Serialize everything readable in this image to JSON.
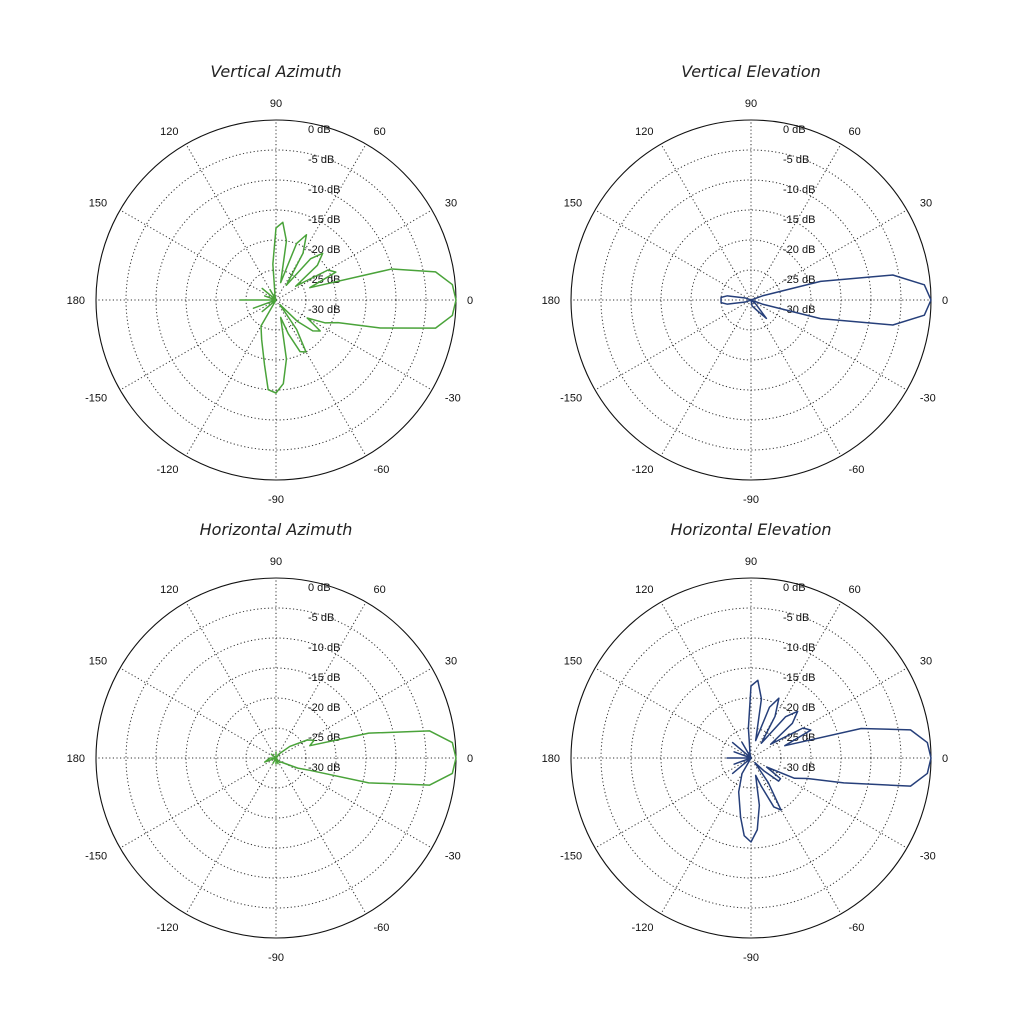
{
  "colors": {
    "green": "#4aa33a",
    "blue": "#263f7a"
  },
  "chart_data": [
    {
      "type": "line",
      "subtype": "polar",
      "title": "Vertical Azimuth",
      "color": "#4aa33a",
      "angle_labels": [
        "0",
        "30",
        "60",
        "90",
        "120",
        "150",
        "180",
        "-150",
        "-120",
        "-90",
        "-60",
        "-30"
      ],
      "radial_labels": [
        "0 dB",
        "-5 dB",
        "-10 dB",
        "-15 dB",
        "-20 dB",
        "-25 dB",
        "-30 dB"
      ],
      "rlim": [
        -30,
        0
      ],
      "series": [
        {
          "theta": [
            -180,
            -170,
            -160,
            -150,
            -140,
            -130,
            -120,
            -110,
            -100,
            -95,
            -90,
            -85,
            -80,
            -75,
            -70,
            -65,
            -60,
            -55,
            -50,
            -45,
            -40,
            -35,
            -30,
            -25,
            -20,
            -15,
            -10,
            -5,
            0,
            5,
            10,
            15,
            20,
            25,
            30,
            35,
            40,
            45,
            50,
            55,
            60,
            65,
            70,
            75,
            80,
            85,
            90,
            95,
            100,
            105,
            110,
            120,
            130,
            140,
            150,
            160,
            170,
            180
          ],
          "r_db": [
            -24,
            -30,
            -26,
            -30,
            -27,
            -30,
            -25,
            -23,
            -19,
            -15,
            -14.5,
            -16,
            -20,
            -27,
            -24,
            -20.5,
            -20,
            -24,
            -29,
            -25,
            -22,
            -21,
            -24,
            -21,
            -19,
            -12,
            -3,
            -0.5,
            0,
            -0.5,
            -3,
            -10,
            -24,
            -19,
            -20,
            -26,
            -21,
            -19,
            -21,
            -27,
            -21,
            -18,
            -20,
            -27,
            -20,
            -17,
            -18,
            -24,
            -29,
            -29,
            -30,
            -28,
            -30,
            -27,
            -30,
            -28,
            -30,
            -24
          ]
        }
      ]
    },
    {
      "type": "line",
      "subtype": "polar",
      "title": "Vertical Elevation",
      "color": "#263f7a",
      "angle_labels": [
        "0",
        "30",
        "60",
        "90",
        "120",
        "150",
        "180",
        "-150",
        "-120",
        "-90",
        "-60",
        "-30"
      ],
      "radial_labels": [
        "0 dB",
        "-5 dB",
        "-10 dB",
        "-15 dB",
        "-20 dB",
        "-25 dB",
        "-30 dB"
      ],
      "rlim": [
        -30,
        0
      ],
      "series": [
        {
          "theta": [
            -180,
            -175,
            -170,
            -160,
            -150,
            -140,
            -120,
            -100,
            -80,
            -60,
            -50,
            -40,
            -30,
            -20,
            -15,
            -10,
            -5,
            0,
            5,
            10,
            15,
            20,
            30,
            40,
            60,
            80,
            100,
            120,
            140,
            160,
            170,
            175,
            180
          ],
          "r_db": [
            -25,
            -25,
            -26,
            -29,
            -30,
            -30,
            -30,
            -30,
            -29,
            -28,
            -26,
            -29,
            -30,
            -28,
            -18,
            -6,
            -1,
            0,
            -1,
            -6,
            -18,
            -28,
            -30,
            -30,
            -30,
            -30,
            -30,
            -30,
            -30,
            -29,
            -26,
            -25,
            -25
          ]
        }
      ]
    },
    {
      "type": "line",
      "subtype": "polar",
      "title": "Horizontal Azimuth",
      "color": "#4aa33a",
      "angle_labels": [
        "0",
        "30",
        "60",
        "90",
        "120",
        "150",
        "180",
        "-150",
        "-120",
        "-90",
        "-60",
        "-30"
      ],
      "radial_labels": [
        "0 dB",
        "-5 dB",
        "-10 dB",
        "-15 dB",
        "-20 dB",
        "-25 dB",
        "-30 dB"
      ],
      "rlim": [
        -30,
        0
      ],
      "series": [
        {
          "theta": [
            -180,
            -160,
            -140,
            -120,
            -100,
            -90,
            -80,
            -70,
            -60,
            -50,
            -40,
            -30,
            -25,
            -20,
            -15,
            -10,
            -5,
            0,
            5,
            10,
            15,
            20,
            25,
            30,
            40,
            50,
            60,
            70,
            80,
            90,
            100,
            120,
            140,
            160,
            180
          ],
          "r_db": [
            -29,
            -28,
            -30,
            -29,
            -30,
            -29,
            -30,
            -29,
            -30,
            -29,
            -29,
            -28,
            -26,
            -24,
            -14,
            -4,
            -0.5,
            0,
            -0.5,
            -4,
            -14,
            -24,
            -23,
            -24,
            -27,
            -29,
            -30,
            -30,
            -30,
            -29,
            -30,
            -30,
            -29,
            -30,
            -29
          ]
        }
      ]
    },
    {
      "type": "line",
      "subtype": "polar",
      "title": "Horizontal Elevation",
      "color": "#263f7a",
      "angle_labels": [
        "0",
        "30",
        "60",
        "90",
        "120",
        "150",
        "180",
        "-150",
        "-120",
        "-90",
        "-60",
        "-30"
      ],
      "radial_labels": [
        "0 dB",
        "-5 dB",
        "-10 dB",
        "-15 dB",
        "-20 dB",
        "-25 dB",
        "-30 dB"
      ],
      "rlim": [
        -30,
        0
      ],
      "series": [
        {
          "theta": [
            -180,
            -170,
            -160,
            -150,
            -140,
            -130,
            -120,
            -110,
            -100,
            -95,
            -90,
            -85,
            -80,
            -75,
            -70,
            -65,
            -60,
            -55,
            -50,
            -45,
            -40,
            -35,
            -30,
            -25,
            -20,
            -15,
            -10,
            -5,
            0,
            5,
            10,
            15,
            20,
            25,
            30,
            35,
            40,
            45,
            50,
            55,
            60,
            65,
            70,
            75,
            80,
            85,
            90,
            95,
            100,
            105,
            110,
            120,
            130,
            140,
            150,
            160,
            170,
            180
          ],
          "r_db": [
            -26,
            -30,
            -27,
            -30,
            -26,
            -30,
            -27,
            -24,
            -20,
            -17,
            -16,
            -18,
            -22,
            -27,
            -25,
            -21,
            -20,
            -25,
            -29,
            -27,
            -24,
            -24,
            -27,
            -22,
            -20,
            -14,
            -3,
            -0.5,
            0,
            -0.5,
            -3,
            -11,
            -24,
            -19,
            -20,
            -26,
            -21,
            -19,
            -21,
            -27,
            -22,
            -19,
            -21,
            -27,
            -20,
            -17,
            -18,
            -25,
            -29,
            -29,
            -30,
            -27,
            -30,
            -26,
            -30,
            -27,
            -30,
            -26
          ]
        }
      ]
    }
  ]
}
